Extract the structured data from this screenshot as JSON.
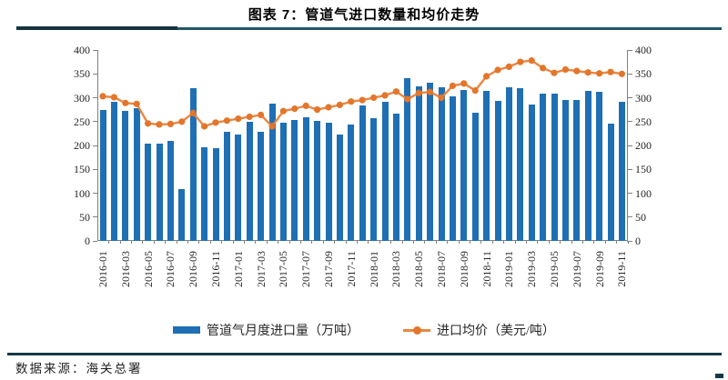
{
  "page": {
    "title": "图表 7：管道气进口数量和均价走势",
    "source": "数据来源：海关总署"
  },
  "legend": {
    "bar_label": "管道气月度进口量（万吨）",
    "line_label": "进口均价（美元/吨）"
  },
  "colors": {
    "bar": "#1F6FB4",
    "line": "#EA8742",
    "marker": "#E2762B",
    "axis": "#808080",
    "label": "#262626",
    "rule_left": "#16323E",
    "rule_right": "#20566B",
    "bottom_rule": "#173945"
  },
  "chart_data": {
    "type": "bar+line",
    "title": "图表 7：管道气进口数量和均价走势",
    "categories": [
      "2016-01",
      "2016-02",
      "2016-03",
      "2016-04",
      "2016-05",
      "2016-06",
      "2016-07",
      "2016-08",
      "2016-09",
      "2016-10",
      "2016-11",
      "2016-12",
      "2017-01",
      "2017-02",
      "2017-03",
      "2017-04",
      "2017-05",
      "2017-06",
      "2017-07",
      "2017-08",
      "2017-09",
      "2017-10",
      "2017-11",
      "2017-12",
      "2018-01",
      "2018-02",
      "2018-03",
      "2018-04",
      "2018-05",
      "2018-06",
      "2018-07",
      "2018-08",
      "2018-09",
      "2018-10",
      "2018-11",
      "2018-12",
      "2019-01",
      "2019-02",
      "2019-03",
      "2019-04",
      "2019-05",
      "2019-06",
      "2019-07",
      "2019-08",
      "2019-09",
      "2019-10",
      "2019-11"
    ],
    "series": [
      {
        "name": "管道气月度进口量（万吨）",
        "type": "bar",
        "axis": "left",
        "values": [
          275,
          292,
          272,
          278,
          204,
          204,
          210,
          108,
          320,
          196,
          195,
          228,
          222,
          250,
          228,
          288,
          248,
          253,
          260,
          251,
          247,
          223,
          244,
          283,
          258,
          292,
          267,
          341,
          324,
          331,
          322,
          303,
          316,
          269,
          314,
          293,
          322,
          320,
          285,
          309,
          308,
          295,
          296,
          314,
          312,
          245,
          292
        ]
      },
      {
        "name": "进口均价（美元/吨）",
        "type": "line",
        "axis": "right",
        "values": [
          303,
          301,
          289,
          287,
          246,
          244,
          245,
          250,
          268,
          240,
          248,
          252,
          256,
          260,
          264,
          240,
          272,
          277,
          283,
          275,
          280,
          285,
          292,
          295,
          300,
          305,
          313,
          297,
          310,
          312,
          300,
          325,
          330,
          315,
          345,
          358,
          365,
          375,
          378,
          362,
          352,
          359,
          356,
          353,
          351,
          354,
          350
        ]
      }
    ],
    "y_left": {
      "min": 0,
      "max": 400,
      "step": 50
    },
    "y_right": {
      "min": 0,
      "max": 400,
      "step": 50
    },
    "xtick_label_every": 2,
    "grid": false,
    "legend_position": "bottom"
  }
}
